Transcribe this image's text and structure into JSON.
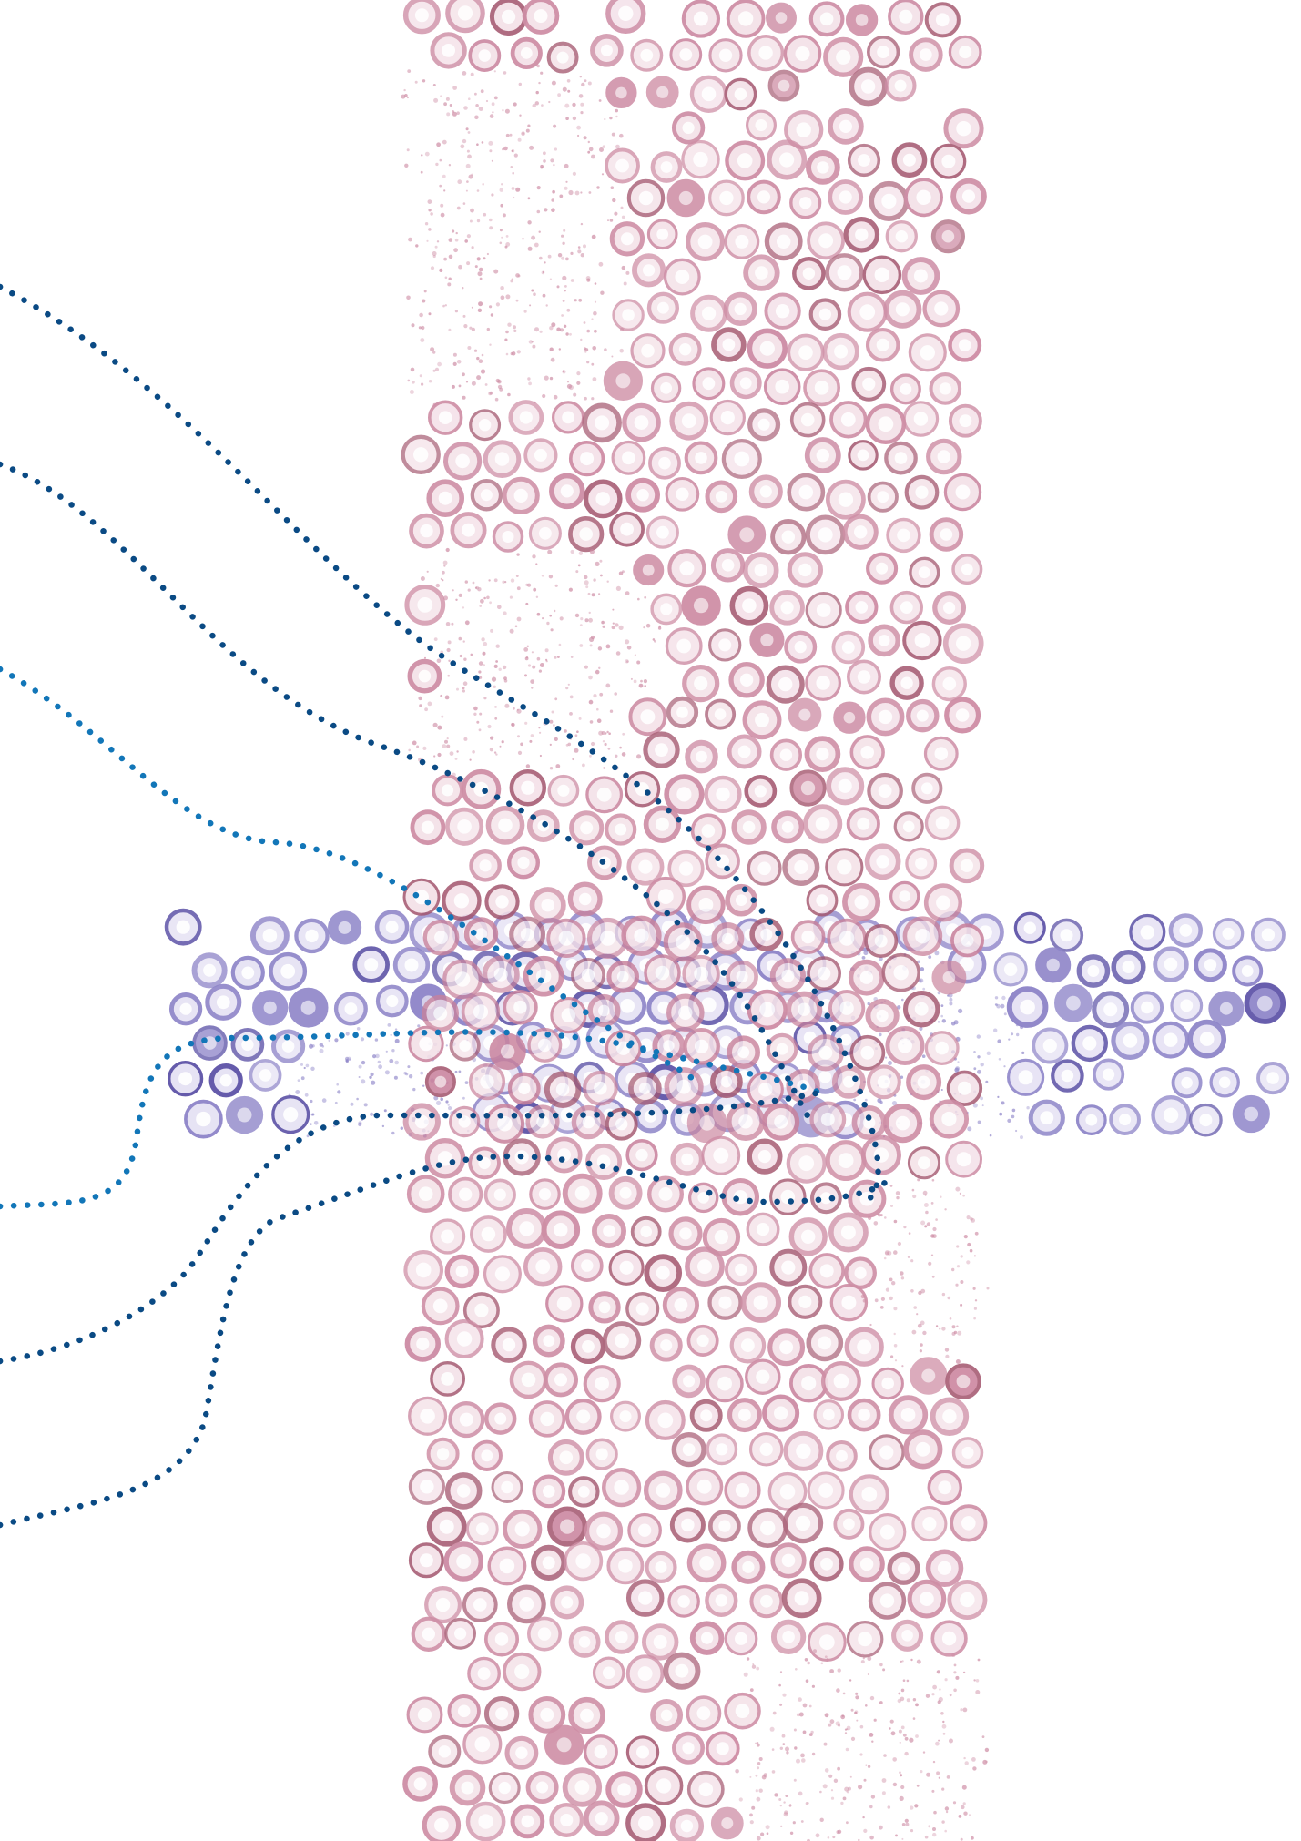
{
  "image": {
    "description_key": "micrograph-collage",
    "background": "#ffffff",
    "colors": {
      "pink_stain": "#c9829c",
      "pink_stain_dark": "#a4576f",
      "pink_fill": "#f3dfe6",
      "violet_stain": "#8f86c9",
      "violet_stain_dark": "#5f55a8",
      "violet_fill": "#e6e2f4",
      "dot_dark_blue": "#0a4a84",
      "dot_mid_blue": "#1276b8"
    },
    "stain_strips": [
      {
        "name": "vertical-pink-strip",
        "stain": "pink"
      },
      {
        "name": "horizontal-violet-strip",
        "stain": "violet"
      }
    ],
    "dotted_paths": [
      {
        "name": "dotted-path-1",
        "color": "dot_dark_blue"
      },
      {
        "name": "dotted-path-2",
        "color": "dot_dark_blue"
      },
      {
        "name": "dotted-path-3",
        "color": "dot_mid_blue"
      },
      {
        "name": "dotted-path-4",
        "color": "dot_mid_blue"
      },
      {
        "name": "dotted-path-5",
        "color": "dot_dark_blue"
      },
      {
        "name": "dotted-path-6",
        "color": "dot_dark_blue"
      }
    ]
  }
}
